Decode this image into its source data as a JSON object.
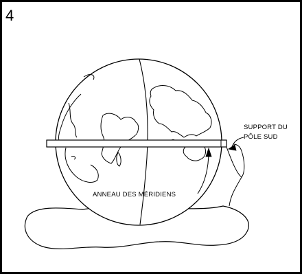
{
  "figure": {
    "step_number": "4",
    "labels": {
      "meridian_ring": "ANNEAU DES MÉRIDIENS",
      "south_pole_support_line1": "SUPPORT DU",
      "south_pole_support_line2": "PÔLE SUD"
    }
  },
  "colors": {
    "ink": "#000000",
    "paper": "#ffffff"
  }
}
